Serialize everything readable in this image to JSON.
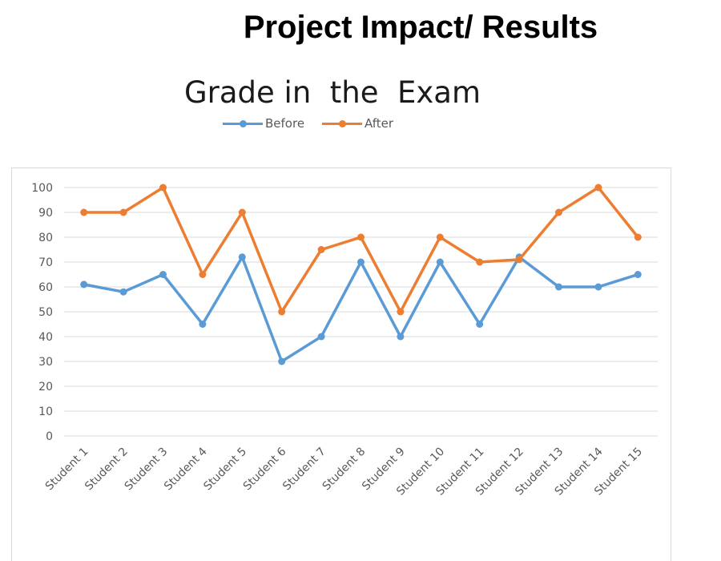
{
  "slide_title": "Project Impact/ Results",
  "chart_data": {
    "type": "line",
    "title": "Grade in  the  Exam",
    "categories": [
      "Student 1",
      "Student 2",
      "Student 3",
      "Student 4",
      "Student 5",
      "Student 6",
      "Student 7",
      "Student 8",
      "Student 9",
      "Student 10",
      "Student 11",
      "Student 12",
      "Student 13",
      "Student 14",
      "Student 15"
    ],
    "series": [
      {
        "name": "Before",
        "color": "#5B9BD5",
        "values": [
          61,
          58,
          65,
          45,
          72,
          30,
          40,
          70,
          40,
          70,
          45,
          72,
          60,
          60,
          65
        ]
      },
      {
        "name": "After",
        "color": "#ED7D31",
        "values": [
          90,
          90,
          100,
          65,
          90,
          50,
          75,
          80,
          50,
          80,
          70,
          71,
          90,
          100,
          80
        ]
      }
    ],
    "yticks": [
      0,
      10,
      20,
      30,
      40,
      50,
      60,
      70,
      80,
      90,
      100
    ],
    "ylim": [
      0,
      100
    ],
    "xlabel": "",
    "ylabel": "",
    "grid": true,
    "legend_position": "top"
  }
}
